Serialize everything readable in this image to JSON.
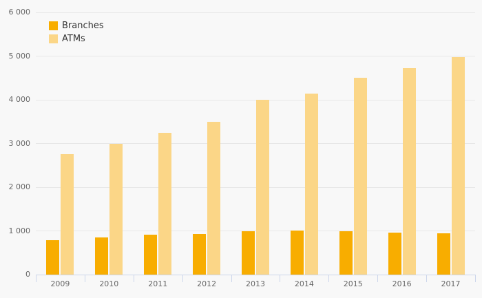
{
  "chart_data": {
    "type": "bar",
    "title": "",
    "categories": [
      "2009",
      "2010",
      "2011",
      "2012",
      "2013",
      "2014",
      "2015",
      "2016",
      "2017"
    ],
    "series": [
      {
        "name": "Branches",
        "color": "#F8AD00",
        "values": [
          790,
          855,
          915,
          930,
          1000,
          1005,
          985,
          960,
          945
        ]
      },
      {
        "name": "ATMs",
        "color": "#FBD687",
        "values": [
          2750,
          3000,
          3250,
          3500,
          4000,
          4140,
          4500,
          4720,
          4980
        ]
      }
    ],
    "xlabel": "",
    "ylabel": "",
    "ylim": [
      0,
      6000
    ],
    "ytick_step": 1000,
    "ytick_labels": [
      "0",
      "1 000",
      "2 000",
      "3 000",
      "4 000",
      "5 000",
      "6 000"
    ],
    "grid": true,
    "legend_position": "top-left"
  },
  "colors": {
    "background": "#F8F8F8",
    "gridline": "#E7E7E7",
    "axis": "#CCD6EB",
    "axis_label_text": "#666666",
    "legend_text": "#333333"
  }
}
